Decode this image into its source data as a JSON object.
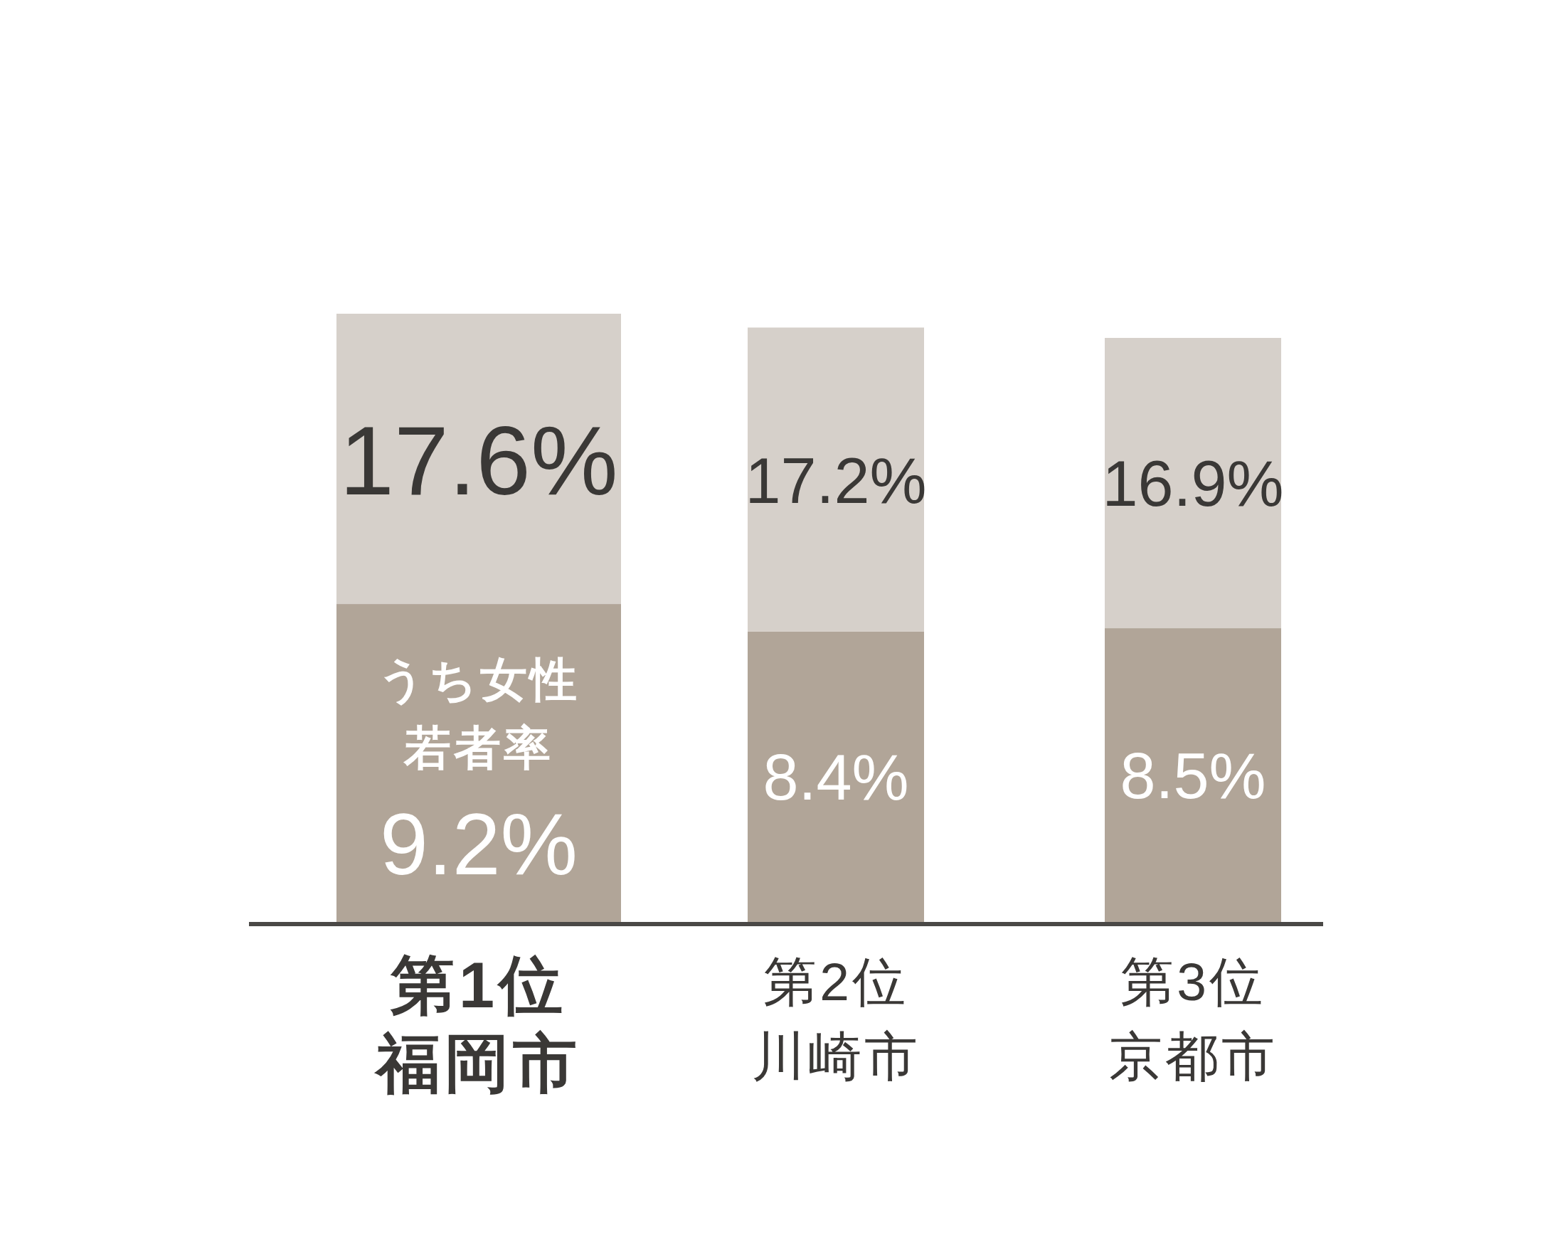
{
  "chart_data": {
    "type": "bar",
    "stacked": true,
    "categories": [
      "第1位福岡市",
      "第2位川崎市",
      "第3位京都市"
    ],
    "series": [
      {
        "name": "うち女性若者率",
        "color": "#b1a598",
        "values": [
          9.2,
          8.4,
          8.5
        ],
        "value_labels": [
          "9.2%",
          "8.4%",
          "8.5%"
        ]
      },
      {
        "color": "#d6d0ca",
        "values": [
          8.4,
          8.8,
          8.4
        ]
      }
    ],
    "totals": [
      "17.6%",
      "17.2%",
      "16.9%"
    ]
  }
}
